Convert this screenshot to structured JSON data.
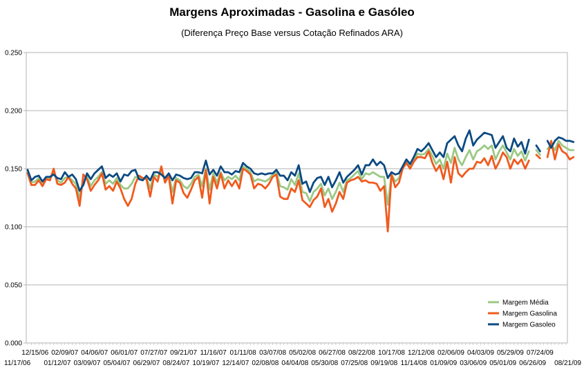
{
  "title": "Margens Aproximadas - Gasolina e Gasóleo",
  "subtitle": "(Diferença Preço Base versus Cotação Refinados ARA)",
  "chart_data": {
    "type": "line",
    "title": "Margens Aproximadas - Gasolina e Gasóleo",
    "subtitle": "(Diferença Preço Base versus Cotação Refinados ARA)",
    "ylim": [
      0,
      0.25
    ],
    "yticks": [
      "0.000",
      "0.050",
      "0.100",
      "0.150",
      "0.200",
      "0.250"
    ],
    "grid": true,
    "legend": "bottom-right",
    "n_points": 146,
    "x_tick_labels_top": [
      "12/15/06",
      "02/09/07",
      "04/06/07",
      "06/01/07",
      "07/27/07",
      "09/21/07",
      "11/16/07",
      "01/11/08",
      "03/07/08",
      "05/02/08",
      "06/27/08",
      "08/22/08",
      "10/17/08",
      "12/12/08",
      "02/06/09",
      "04/03/09",
      "05/29/09",
      "07/24/09"
    ],
    "x_tick_labels_bottom": [
      "11/17/06",
      "01/12/07",
      "03/09/07",
      "05/04/07",
      "06/29/07",
      "08/24/07",
      "10/19/07",
      "12/14/07",
      "02/08/08",
      "04/04/08",
      "05/30/08",
      "07/25/08",
      "09/19/08",
      "11/14/08",
      "01/09/09",
      "03/06/09",
      "05/01/09",
      "06/26/09",
      "08/21/09"
    ],
    "series": [
      {
        "name": "Margem Média",
        "color": "#9bc884",
        "values": [
          0.147,
          0.138,
          0.139,
          0.142,
          0.137,
          0.142,
          0.141,
          0.147,
          0.14,
          0.138,
          0.142,
          0.143,
          0.14,
          0.137,
          0.125,
          0.14,
          0.143,
          0.135,
          0.14,
          0.143,
          0.147,
          0.137,
          0.14,
          0.137,
          0.142,
          0.136,
          0.133,
          0.133,
          0.137,
          0.143,
          0.142,
          0.141,
          0.142,
          0.133,
          0.145,
          0.143,
          0.148,
          0.14,
          0.145,
          0.13,
          0.142,
          0.14,
          0.135,
          0.133,
          0.137,
          0.143,
          0.145,
          0.135,
          0.15,
          0.132,
          0.146,
          0.138,
          0.147,
          0.14,
          0.143,
          0.141,
          0.144,
          0.14,
          0.152,
          0.15,
          0.147,
          0.139,
          0.141,
          0.14,
          0.139,
          0.141,
          0.145,
          0.147,
          0.135,
          0.134,
          0.132,
          0.141,
          0.136,
          0.146,
          0.13,
          0.129,
          0.122,
          0.13,
          0.133,
          0.137,
          0.127,
          0.133,
          0.124,
          0.13,
          0.138,
          0.13,
          0.14,
          0.142,
          0.145,
          0.148,
          0.141,
          0.146,
          0.145,
          0.147,
          0.145,
          0.143,
          0.143,
          0.119,
          0.145,
          0.139,
          0.142,
          0.151,
          0.156,
          0.152,
          0.157,
          0.163,
          0.162,
          0.163,
          0.167,
          0.161,
          0.154,
          0.158,
          0.15,
          0.163,
          0.155,
          0.168,
          0.158,
          0.153,
          0.16,
          0.166,
          0.158,
          0.165,
          0.167,
          0.17,
          0.167,
          0.17,
          0.158,
          0.165,
          0.17,
          0.164,
          0.158,
          0.167,
          0.161,
          0.165,
          0.157,
          0.165,
          null,
          0.166,
          0.162,
          null,
          0.167,
          0.171,
          0.166,
          0.174,
          0.17,
          0.168,
          0.166,
          0.166
        ]
      },
      {
        "name": "Margem Gasolina",
        "color": "#f05a1e",
        "values": [
          0.146,
          0.136,
          0.136,
          0.14,
          0.135,
          0.141,
          0.14,
          0.15,
          0.137,
          0.136,
          0.138,
          0.143,
          0.137,
          0.133,
          0.118,
          0.145,
          0.141,
          0.131,
          0.136,
          0.14,
          0.146,
          0.132,
          0.135,
          0.131,
          0.139,
          0.133,
          0.124,
          0.118,
          0.124,
          0.137,
          0.144,
          0.142,
          0.141,
          0.126,
          0.143,
          0.139,
          0.152,
          0.138,
          0.144,
          0.12,
          0.14,
          0.138,
          0.129,
          0.125,
          0.132,
          0.14,
          0.143,
          0.125,
          0.149,
          0.12,
          0.143,
          0.133,
          0.146,
          0.133,
          0.14,
          0.135,
          0.14,
          0.133,
          0.15,
          0.148,
          0.145,
          0.133,
          0.137,
          0.136,
          0.133,
          0.137,
          0.143,
          0.145,
          0.126,
          0.124,
          0.124,
          0.133,
          0.13,
          0.14,
          0.123,
          0.12,
          0.117,
          0.123,
          0.126,
          0.133,
          0.117,
          0.124,
          0.113,
          0.12,
          0.13,
          0.124,
          0.138,
          0.14,
          0.141,
          0.143,
          0.139,
          0.14,
          0.138,
          0.138,
          0.137,
          0.131,
          0.135,
          0.096,
          0.145,
          0.134,
          0.138,
          0.15,
          0.155,
          0.15,
          0.156,
          0.16,
          0.16,
          0.159,
          0.165,
          0.155,
          0.148,
          0.153,
          0.141,
          0.156,
          0.138,
          0.16,
          0.146,
          0.143,
          0.147,
          0.15,
          0.15,
          0.156,
          0.155,
          0.159,
          0.153,
          0.161,
          0.15,
          0.156,
          0.164,
          0.16,
          0.15,
          0.158,
          0.154,
          0.158,
          0.15,
          0.157,
          null,
          0.162,
          0.159,
          null,
          0.16,
          0.174,
          0.158,
          0.171,
          0.165,
          0.163,
          0.158,
          0.16
        ]
      },
      {
        "name": "Margem Gasoleo",
        "color": "#0b4a82",
        "values": [
          0.149,
          0.14,
          0.143,
          0.144,
          0.139,
          0.143,
          0.143,
          0.145,
          0.142,
          0.141,
          0.147,
          0.143,
          0.145,
          0.141,
          0.131,
          0.136,
          0.146,
          0.141,
          0.146,
          0.149,
          0.152,
          0.142,
          0.145,
          0.143,
          0.146,
          0.139,
          0.145,
          0.144,
          0.148,
          0.149,
          0.141,
          0.14,
          0.144,
          0.14,
          0.147,
          0.147,
          0.145,
          0.142,
          0.146,
          0.14,
          0.145,
          0.144,
          0.142,
          0.141,
          0.142,
          0.147,
          0.147,
          0.146,
          0.157,
          0.145,
          0.149,
          0.144,
          0.152,
          0.147,
          0.147,
          0.145,
          0.148,
          0.147,
          0.155,
          0.152,
          0.15,
          0.146,
          0.145,
          0.146,
          0.145,
          0.146,
          0.146,
          0.149,
          0.144,
          0.144,
          0.14,
          0.147,
          0.144,
          0.153,
          0.137,
          0.139,
          0.13,
          0.138,
          0.142,
          0.143,
          0.136,
          0.143,
          0.134,
          0.14,
          0.147,
          0.138,
          0.143,
          0.146,
          0.149,
          0.153,
          0.145,
          0.153,
          0.153,
          0.158,
          0.153,
          0.156,
          0.153,
          0.142,
          0.147,
          0.145,
          0.146,
          0.152,
          0.158,
          0.154,
          0.16,
          0.167,
          0.165,
          0.168,
          0.172,
          0.166,
          0.16,
          0.164,
          0.16,
          0.172,
          0.175,
          0.178,
          0.17,
          0.165,
          0.176,
          0.183,
          0.17,
          0.175,
          0.178,
          0.181,
          0.18,
          0.179,
          0.168,
          0.173,
          0.178,
          0.168,
          0.165,
          0.176,
          0.169,
          0.173,
          0.163,
          0.175,
          null,
          0.17,
          0.165,
          null,
          0.174,
          0.168,
          0.174,
          0.177,
          0.176,
          0.174,
          0.174,
          0.173
        ]
      }
    ]
  }
}
